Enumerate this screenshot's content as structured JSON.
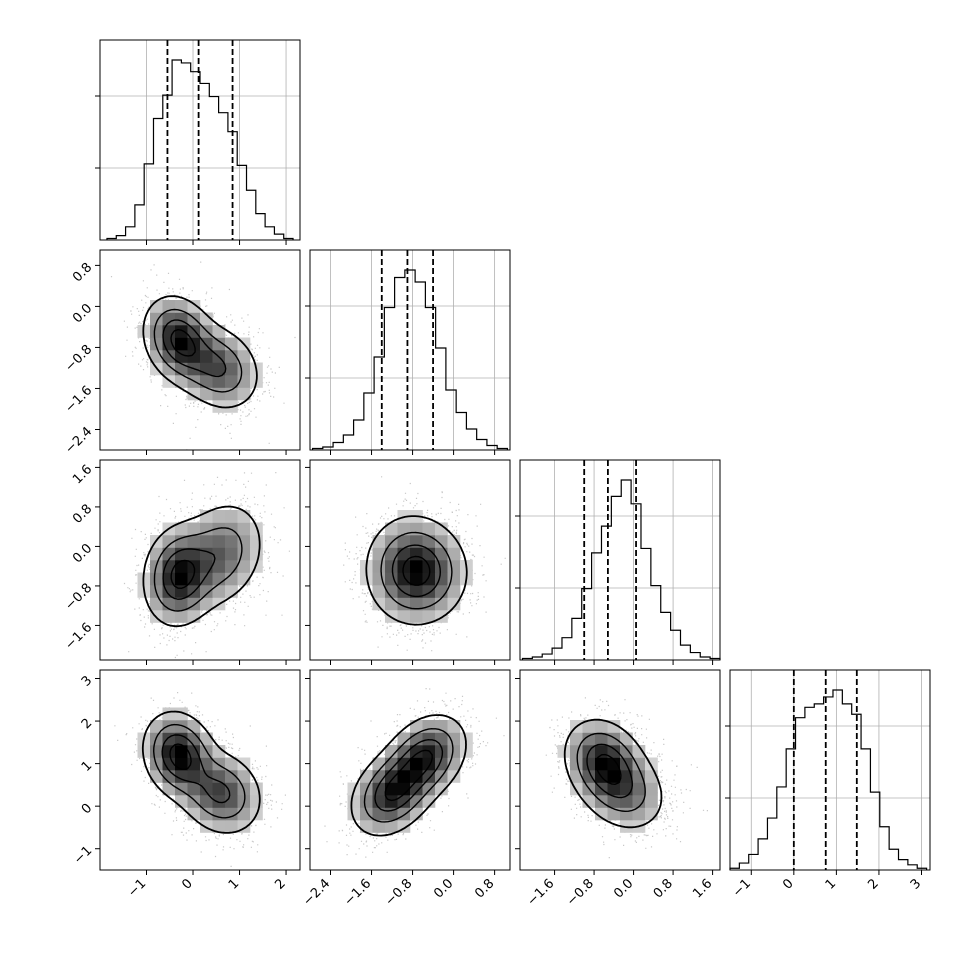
{
  "chart_data": {
    "type": "corner",
    "parameters": 4,
    "style": {
      "panel_border": "#000000",
      "grid": "#b0b0b0",
      "scatter_points": "#9a9a9a",
      "contour": "#000000",
      "histogram_line": "#000000",
      "density_dark": "#000000",
      "density_light": "#ffffff"
    },
    "quantile_lines": [
      [
        -0.55,
        0.12,
        0.85
      ],
      [
        -1.4,
        -0.9,
        -0.4
      ],
      [
        -1.0,
        -0.52,
        0.05
      ],
      [
        0.0,
        0.75,
        1.48
      ]
    ],
    "axes": {
      "ranges": [
        [
          -2.0,
          2.3
        ],
        [
          -2.8,
          1.1
        ],
        [
          -2.3,
          1.75
        ],
        [
          -1.5,
          3.2
        ]
      ],
      "x_ticks": [
        [
          {
            "v": -1,
            "label": "−1"
          },
          {
            "v": 0,
            "label": "0"
          },
          {
            "v": 1,
            "label": "1"
          },
          {
            "v": 2,
            "label": "2"
          }
        ],
        [
          {
            "v": -2.4,
            "label": "−2.4"
          },
          {
            "v": -1.6,
            "label": "−1.6"
          },
          {
            "v": -0.8,
            "label": "−0.8"
          },
          {
            "v": 0.0,
            "label": "0.0"
          },
          {
            "v": 0.8,
            "label": "0.8"
          }
        ],
        [
          {
            "v": -1.6,
            "label": "−1.6"
          },
          {
            "v": -0.8,
            "label": "−0.8"
          },
          {
            "v": 0.0,
            "label": "0.0"
          },
          {
            "v": 0.8,
            "label": "0.8"
          },
          {
            "v": 1.6,
            "label": "1.6"
          }
        ],
        [
          {
            "v": -1,
            "label": "−1"
          },
          {
            "v": 0,
            "label": "0"
          },
          {
            "v": 1,
            "label": "1"
          },
          {
            "v": 2,
            "label": "2"
          },
          {
            "v": 3,
            "label": "3"
          }
        ]
      ],
      "y_ticks": [
        [],
        [
          {
            "v": -2.4,
            "label": "−2.4"
          },
          {
            "v": -1.6,
            "label": "−1.6"
          },
          {
            "v": -0.8,
            "label": "−0.8"
          },
          {
            "v": 0.0,
            "label": "0.0"
          },
          {
            "v": 0.8,
            "label": "0.8"
          }
        ],
        [
          {
            "v": -1.6,
            "label": "−1.6"
          },
          {
            "v": -0.8,
            "label": "−0.8"
          },
          {
            "v": 0.0,
            "label": "0.0"
          },
          {
            "v": 0.8,
            "label": "0.8"
          },
          {
            "v": 1.6,
            "label": "1.6"
          }
        ],
        [
          {
            "v": -1,
            "label": "−1"
          },
          {
            "v": 0,
            "label": "0"
          },
          {
            "v": 1,
            "label": "1"
          },
          {
            "v": 2,
            "label": "2"
          },
          {
            "v": 3,
            "label": "3"
          }
        ]
      ]
    },
    "histograms": [
      {
        "parameter": 0,
        "bins": [
          -1.85,
          -1.65,
          -1.45,
          -1.25,
          -1.05,
          -0.85,
          -0.65,
          -0.45,
          -0.25,
          -0.05,
          0.15,
          0.35,
          0.55,
          0.75,
          0.95,
          1.15,
          1.35,
          1.55,
          1.75,
          1.95,
          2.15
        ],
        "counts": [
          1,
          3,
          9,
          24,
          52,
          83,
          99,
          123,
          121,
          115,
          107,
          98,
          87,
          74,
          51,
          34,
          18,
          9,
          4,
          1
        ]
      },
      {
        "parameter": 1,
        "bins": [
          -2.75,
          -2.55,
          -2.35,
          -2.15,
          -1.95,
          -1.75,
          -1.55,
          -1.35,
          -1.15,
          -0.95,
          -0.75,
          -0.55,
          -0.35,
          -0.15,
          0.05,
          0.25,
          0.45,
          0.65,
          0.85,
          1.05
        ],
        "counts": [
          1,
          2,
          5,
          10,
          20,
          38,
          62,
          95,
          115,
          120,
          112,
          95,
          68,
          40,
          25,
          14,
          7,
          3,
          1
        ]
      },
      {
        "parameter": 2,
        "bins": [
          -2.25,
          -2.05,
          -1.85,
          -1.65,
          -1.45,
          -1.25,
          -1.05,
          -0.85,
          -0.65,
          -0.45,
          -0.25,
          -0.05,
          0.15,
          0.35,
          0.55,
          0.75,
          0.95,
          1.15,
          1.35,
          1.55,
          1.75
        ],
        "counts": [
          1,
          2,
          4,
          8,
          15,
          28,
          48,
          72,
          90,
          110,
          121,
          105,
          75,
          50,
          32,
          20,
          10,
          5,
          2,
          1
        ]
      },
      {
        "parameter": 3,
        "bins": [
          -1.5,
          -1.28,
          -1.06,
          -0.84,
          -0.62,
          -0.4,
          -0.18,
          0.04,
          0.26,
          0.48,
          0.7,
          0.92,
          1.14,
          1.36,
          1.58,
          1.8,
          2.02,
          2.24,
          2.46,
          2.68,
          2.9,
          3.12
        ],
        "counts": [
          1,
          4,
          9,
          18,
          30,
          48,
          70,
          88,
          94,
          96,
          100,
          104,
          96,
          90,
          70,
          45,
          25,
          12,
          6,
          3,
          1
        ]
      }
    ],
    "pair_plots": [
      {
        "x_param": 0,
        "y_param": 1,
        "components": [
          {
            "mean": [
              -0.3,
              -0.65
            ],
            "sd": [
              0.38,
              0.42
            ],
            "rho": -0.2,
            "w": 0.55
          },
          {
            "mean": [
              0.55,
              -1.2
            ],
            "sd": [
              0.45,
              0.42
            ],
            "rho": -0.2,
            "w": 0.45
          }
        ]
      },
      {
        "x_param": 0,
        "y_param": 2,
        "components": [
          {
            "mean": [
              -0.3,
              -0.6
            ],
            "sd": [
              0.38,
              0.5
            ],
            "rho": 0.1,
            "w": 0.55
          },
          {
            "mean": [
              0.6,
              -0.15
            ],
            "sd": [
              0.48,
              0.55
            ],
            "rho": 0.2,
            "w": 0.45
          }
        ]
      },
      {
        "x_param": 1,
        "y_param": 2,
        "components": [
          {
            "mean": [
              -0.85,
              -0.45
            ],
            "sd": [
              0.45,
              0.55
            ],
            "rho": 0.0,
            "w": 0.6
          },
          {
            "mean": [
              -0.55,
              -0.55
            ],
            "sd": [
              0.45,
              0.5
            ],
            "rho": 0.0,
            "w": 0.4
          }
        ]
      },
      {
        "x_param": 0,
        "y_param": 3,
        "components": [
          {
            "mean": [
              -0.3,
              1.2
            ],
            "sd": [
              0.38,
              0.5
            ],
            "rho": -0.15,
            "w": 0.55
          },
          {
            "mean": [
              0.6,
              0.3
            ],
            "sd": [
              0.45,
              0.5
            ],
            "rho": -0.15,
            "w": 0.45
          }
        ]
      },
      {
        "x_param": 1,
        "y_param": 3,
        "components": [
          {
            "mean": [
              -1.2,
              0.3
            ],
            "sd": [
              0.4,
              0.5
            ],
            "rho": 0.3,
            "w": 0.5
          },
          {
            "mean": [
              -0.55,
              1.15
            ],
            "sd": [
              0.4,
              0.5
            ],
            "rho": 0.3,
            "w": 0.5
          }
        ]
      },
      {
        "x_param": 2,
        "y_param": 3,
        "components": [
          {
            "mean": [
              -0.6,
              1.05
            ],
            "sd": [
              0.4,
              0.5
            ],
            "rho": -0.2,
            "w": 0.6
          },
          {
            "mean": [
              -0.2,
              0.35
            ],
            "sd": [
              0.45,
              0.5
            ],
            "rho": -0.2,
            "w": 0.4
          }
        ]
      }
    ]
  }
}
